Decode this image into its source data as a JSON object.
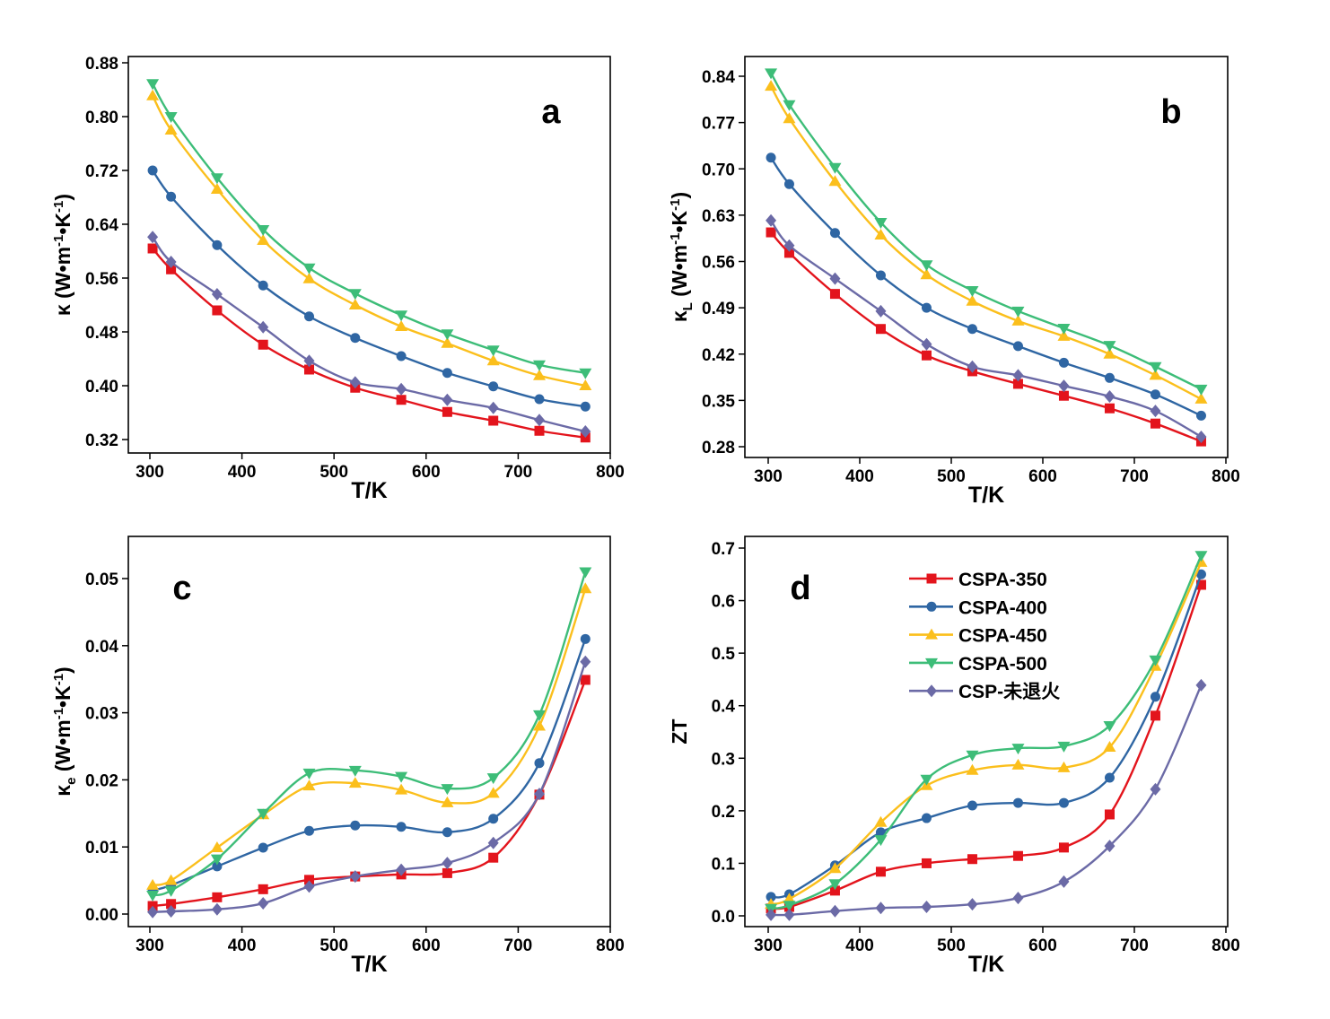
{
  "chart_data": [
    {
      "type": "line",
      "panel_label": "a",
      "xlabel": "T/K",
      "ylabel_parts": [
        [
          "κ",
          "n"
        ],
        [
          " (W•m",
          "n"
        ],
        [
          "-1",
          "sup"
        ],
        [
          "•K",
          "n"
        ],
        [
          "-1",
          "sup"
        ],
        [
          ")",
          "n"
        ]
      ],
      "xlim": [
        300,
        800
      ],
      "ylim": [
        0.32,
        0.88
      ],
      "xticks": [
        300,
        400,
        500,
        600,
        700,
        800
      ],
      "yticks": [
        0.32,
        0.4,
        0.48,
        0.56,
        0.64,
        0.72,
        0.8,
        0.88
      ],
      "ydecimals": 2,
      "x": [
        303,
        323,
        373,
        423,
        473,
        523,
        573,
        623,
        673,
        723,
        773
      ],
      "series": [
        {
          "name": "CSPA-350",
          "values": [
            0.604,
            0.573,
            0.512,
            0.461,
            0.424,
            0.397,
            0.379,
            0.361,
            0.348,
            0.333,
            0.323
          ]
        },
        {
          "name": "CSPA-400",
          "values": [
            0.72,
            0.681,
            0.609,
            0.549,
            0.503,
            0.471,
            0.444,
            0.419,
            0.399,
            0.38,
            0.369
          ]
        },
        {
          "name": "CSPA-450",
          "values": [
            0.831,
            0.78,
            0.692,
            0.616,
            0.559,
            0.52,
            0.488,
            0.463,
            0.437,
            0.415,
            0.4
          ]
        },
        {
          "name": "CSPA-500",
          "values": [
            0.849,
            0.8,
            0.709,
            0.632,
            0.575,
            0.537,
            0.505,
            0.477,
            0.453,
            0.431,
            0.419
          ]
        },
        {
          "name": "CSP-未退火",
          "values": [
            0.621,
            0.584,
            0.536,
            0.487,
            0.437,
            0.405,
            0.395,
            0.379,
            0.367,
            0.349,
            0.332
          ]
        }
      ]
    },
    {
      "type": "line",
      "panel_label": "b",
      "xlabel": "T/K",
      "ylabel_parts": [
        [
          "κ",
          "n"
        ],
        [
          "L",
          "sub"
        ],
        [
          " (W•m",
          "n"
        ],
        [
          "-1",
          "sup"
        ],
        [
          "•K",
          "n"
        ],
        [
          "-1",
          "sup"
        ],
        [
          ")",
          "n"
        ]
      ],
      "xlim": [
        300,
        800
      ],
      "ylim": [
        0.28,
        0.84
      ],
      "xticks": [
        300,
        400,
        500,
        600,
        700,
        800
      ],
      "yticks": [
        0.28,
        0.35,
        0.42,
        0.49,
        0.56,
        0.63,
        0.7,
        0.77,
        0.84
      ],
      "ydecimals": 2,
      "x": [
        303,
        323,
        373,
        423,
        473,
        523,
        573,
        623,
        673,
        723,
        773
      ],
      "series": [
        {
          "name": "CSPA-350",
          "values": [
            0.604,
            0.573,
            0.511,
            0.458,
            0.418,
            0.394,
            0.375,
            0.357,
            0.338,
            0.315,
            0.288
          ]
        },
        {
          "name": "CSPA-400",
          "values": [
            0.717,
            0.677,
            0.603,
            0.539,
            0.49,
            0.458,
            0.432,
            0.407,
            0.384,
            0.359,
            0.327
          ]
        },
        {
          "name": "CSPA-450",
          "values": [
            0.825,
            0.776,
            0.681,
            0.6,
            0.54,
            0.5,
            0.47,
            0.447,
            0.42,
            0.388,
            0.352
          ]
        },
        {
          "name": "CSPA-500",
          "values": [
            0.845,
            0.797,
            0.702,
            0.619,
            0.555,
            0.516,
            0.485,
            0.459,
            0.433,
            0.401,
            0.367
          ]
        },
        {
          "name": "CSP-未退火",
          "values": [
            0.622,
            0.584,
            0.534,
            0.485,
            0.435,
            0.401,
            0.388,
            0.372,
            0.356,
            0.334,
            0.295
          ]
        }
      ]
    },
    {
      "type": "line",
      "panel_label": "c",
      "xlabel": "T/K",
      "ylabel_parts": [
        [
          "κ",
          "n"
        ],
        [
          "e",
          "sub"
        ],
        [
          " (W•m",
          "n"
        ],
        [
          "-1",
          "sup"
        ],
        [
          "•K",
          "n"
        ],
        [
          "-1",
          "sup"
        ],
        [
          ")",
          "n"
        ]
      ],
      "xlim": [
        300,
        800
      ],
      "ylim": [
        0.0,
        0.05
      ],
      "xticks": [
        300,
        400,
        500,
        600,
        700,
        800
      ],
      "yticks": [
        0.0,
        0.01,
        0.02,
        0.03,
        0.04,
        0.05
      ],
      "ydecimals": 2,
      "x": [
        303,
        323,
        373,
        423,
        473,
        523,
        573,
        623,
        673,
        723,
        773
      ],
      "series": [
        {
          "name": "CSPA-350",
          "values": [
            0.0012,
            0.0015,
            0.0025,
            0.0037,
            0.0051,
            0.0056,
            0.0059,
            0.0061,
            0.0084,
            0.0178,
            0.0349
          ]
        },
        {
          "name": "CSPA-400",
          "values": [
            0.0035,
            0.0043,
            0.0071,
            0.0099,
            0.0124,
            0.0132,
            0.013,
            0.0122,
            0.0142,
            0.0225,
            0.041
          ]
        },
        {
          "name": "CSPA-450",
          "values": [
            0.0043,
            0.005,
            0.0099,
            0.0148,
            0.0191,
            0.0195,
            0.0185,
            0.0166,
            0.018,
            0.028,
            0.0485
          ]
        },
        {
          "name": "CSPA-500",
          "values": [
            0.0028,
            0.0035,
            0.0082,
            0.015,
            0.021,
            0.0214,
            0.0205,
            0.0187,
            0.0203,
            0.0297,
            0.051
          ]
        },
        {
          "name": "CSP-未退火",
          "values": [
            0.0003,
            0.0004,
            0.0007,
            0.0016,
            0.0041,
            0.0056,
            0.0066,
            0.0076,
            0.0106,
            0.0179,
            0.0376
          ]
        }
      ]
    },
    {
      "type": "line",
      "panel_label": "d",
      "xlabel": "T/K",
      "ylabel_parts": [
        [
          "ZT",
          "n"
        ]
      ],
      "xlim": [
        300,
        800
      ],
      "ylim": [
        0.0,
        0.7
      ],
      "xticks": [
        300,
        400,
        500,
        600,
        700,
        800
      ],
      "yticks": [
        0.0,
        0.1,
        0.2,
        0.3,
        0.4,
        0.5,
        0.6,
        0.7
      ],
      "ydecimals": 1,
      "legend": "top-center",
      "x": [
        303,
        323,
        373,
        423,
        473,
        523,
        573,
        623,
        673,
        723,
        773
      ],
      "series": [
        {
          "name": "CSPA-350",
          "values": [
            0.014,
            0.017,
            0.048,
            0.084,
            0.1,
            0.108,
            0.114,
            0.13,
            0.193,
            0.381,
            0.63
          ]
        },
        {
          "name": "CSPA-400",
          "values": [
            0.036,
            0.041,
            0.096,
            0.159,
            0.186,
            0.21,
            0.215,
            0.215,
            0.263,
            0.417,
            0.65
          ]
        },
        {
          "name": "CSPA-450",
          "values": [
            0.022,
            0.032,
            0.09,
            0.178,
            0.248,
            0.277,
            0.287,
            0.282,
            0.321,
            0.475,
            0.673
          ]
        },
        {
          "name": "CSPA-500",
          "values": [
            0.014,
            0.02,
            0.061,
            0.145,
            0.26,
            0.306,
            0.319,
            0.323,
            0.362,
            0.487,
            0.686
          ]
        },
        {
          "name": "CSP-未退火",
          "values": [
            0.002,
            0.002,
            0.009,
            0.015,
            0.017,
            0.022,
            0.034,
            0.065,
            0.133,
            0.241,
            0.439
          ]
        }
      ]
    }
  ],
  "series_style": [
    {
      "color": "#e3141c",
      "marker": "square"
    },
    {
      "color": "#2f66a3",
      "marker": "circle"
    },
    {
      "color": "#fbbf1c",
      "marker": "triangle-up"
    },
    {
      "color": "#3dbd78",
      "marker": "triangle-down"
    },
    {
      "color": "#6b6aa6",
      "marker": "diamond"
    }
  ]
}
